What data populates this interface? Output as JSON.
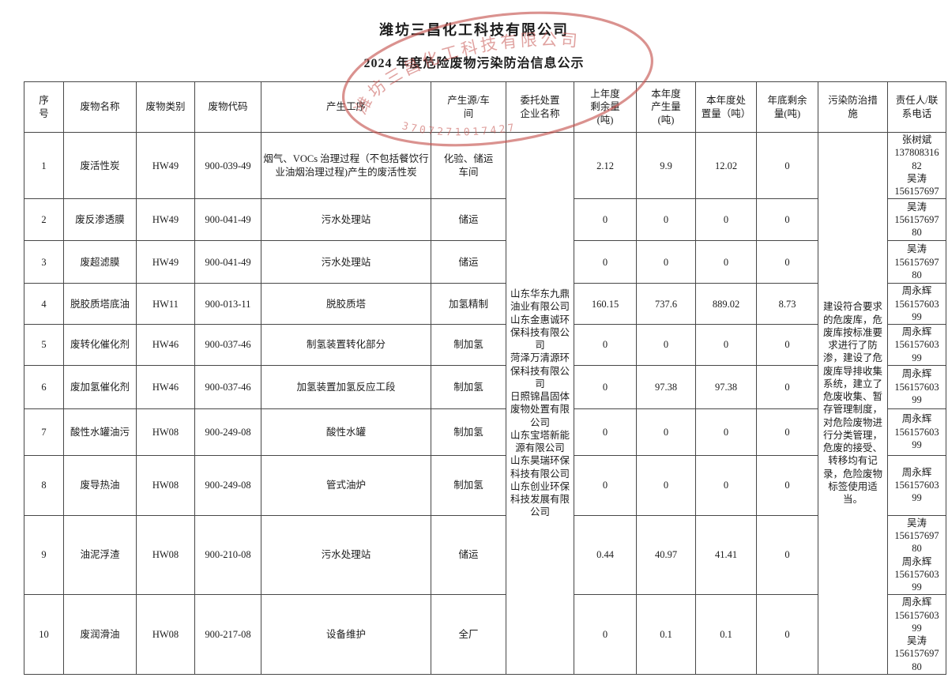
{
  "page": {
    "title": "潍坊三昌化工科技有限公司",
    "subtitle": "2024 年度危险废物污染防治信息公示"
  },
  "stamp": {
    "company": "潍坊三昌化工科技有限公司",
    "number": "3707271017427",
    "color": "#c5504c"
  },
  "table": {
    "headers": [
      "序\n号",
      "废物名称",
      "废物类别",
      "废物代码",
      "产生工序",
      "产生源/车\n间",
      "委托处置\n企业名称",
      "上年度\n剩余量\n(吨)",
      "本年度\n产生量\n(吨)",
      "本年度处\n置量（吨）",
      "年底剩余\n量(吨)",
      "污染防治措\n施",
      "责任人/联\n系电话"
    ],
    "rows": [
      {
        "no": "1",
        "name": "废活性炭",
        "category": "HW49",
        "code": "900-039-49",
        "process": "烟气、VOCs 治理过程（不包括餐饮行业油烟治理过程)产生的废活性炭",
        "source": "化验、储运\n车间",
        "prev": "2.12",
        "produced": "9.9",
        "disposed": "12.02",
        "remain": "0",
        "contact": "张树斌\n137808316\n82\n吴涛\n156157697"
      },
      {
        "no": "2",
        "name": "废反渗透膜",
        "category": "HW49",
        "code": "900-041-49",
        "process": "污水处理站",
        "source": "储运",
        "prev": "0",
        "produced": "0",
        "disposed": "0",
        "remain": "0",
        "contact": "吴涛\n156157697\n80"
      },
      {
        "no": "3",
        "name": "废超滤膜",
        "category": "HW49",
        "code": "900-041-49",
        "process": "污水处理站",
        "source": "储运",
        "prev": "0",
        "produced": "0",
        "disposed": "0",
        "remain": "0",
        "contact": "吴涛\n156157697\n80"
      },
      {
        "no": "4",
        "name": "脱胶质塔底油",
        "category": "HW11",
        "code": "900-013-11",
        "process": "脱胶质塔",
        "source": "加氢精制",
        "prev": "160.15",
        "produced": "737.6",
        "disposed": "889.02",
        "remain": "8.73",
        "contact": "周永辉\n156157603\n99"
      },
      {
        "no": "5",
        "name": "废转化催化剂",
        "category": "HW46",
        "code": "900-037-46",
        "process": "制氢装置转化部分",
        "source": "制加氢",
        "prev": "0",
        "produced": "0",
        "disposed": "0",
        "remain": "0",
        "contact": "周永辉\n156157603\n99"
      },
      {
        "no": "6",
        "name": "废加氢催化剂",
        "category": "HW46",
        "code": "900-037-46",
        "process": "加氢装置加氢反应工段",
        "source": "制加氢",
        "prev": "0",
        "produced": "97.38",
        "disposed": "97.38",
        "remain": "0",
        "contact": "周永辉\n156157603\n99"
      },
      {
        "no": "7",
        "name": "酸性水罐油污",
        "category": "HW08",
        "code": "900-249-08",
        "process": "酸性水罐",
        "source": "制加氢",
        "prev": "0",
        "produced": "0",
        "disposed": "0",
        "remain": "0",
        "contact": "周永辉\n156157603\n99"
      },
      {
        "no": "8",
        "name": "废导热油",
        "category": "HW08",
        "code": "900-249-08",
        "process": "管式油炉",
        "source": "制加氢",
        "prev": "0",
        "produced": "0",
        "disposed": "0",
        "remain": "0",
        "contact": "周永辉\n156157603\n99"
      },
      {
        "no": "9",
        "name": "油泥浮渣",
        "category": "HW08",
        "code": "900-210-08",
        "process": "污水处理站",
        "source": "储运",
        "prev": "0.44",
        "produced": "40.97",
        "disposed": "41.41",
        "remain": "0",
        "contact": "吴涛\n156157697\n80\n周永辉\n156157603\n99"
      },
      {
        "no": "10",
        "name": "废润滑油",
        "category": "HW08",
        "code": "900-217-08",
        "process": "设备维护",
        "source": "全厂",
        "prev": "0",
        "produced": "0.1",
        "disposed": "0.1",
        "remain": "0",
        "contact": "周永辉\n156157603\n99\n吴涛\n156157697\n80"
      }
    ],
    "merged": {
      "companies": "山东华东九鼎油业有限公司\n山东金惠诚环保科技有限公司\n菏泽万清源环保科技有限公司\n日照锦昌固体废物处置有限公司\n山东宝塔新能源有限公司\n山东昊瑞环保科技有限公司\n山东创业环保科技发展有限公司",
      "measures": "建设符合要求的危废库，危废库按标准要求进行了防渗，建设了危废库导排收集系统，建立了危废收集、暂存管理制度，对危险废物进行分类管理，危废的接受、转移均有记录，危险废物标签使用适当。"
    }
  }
}
